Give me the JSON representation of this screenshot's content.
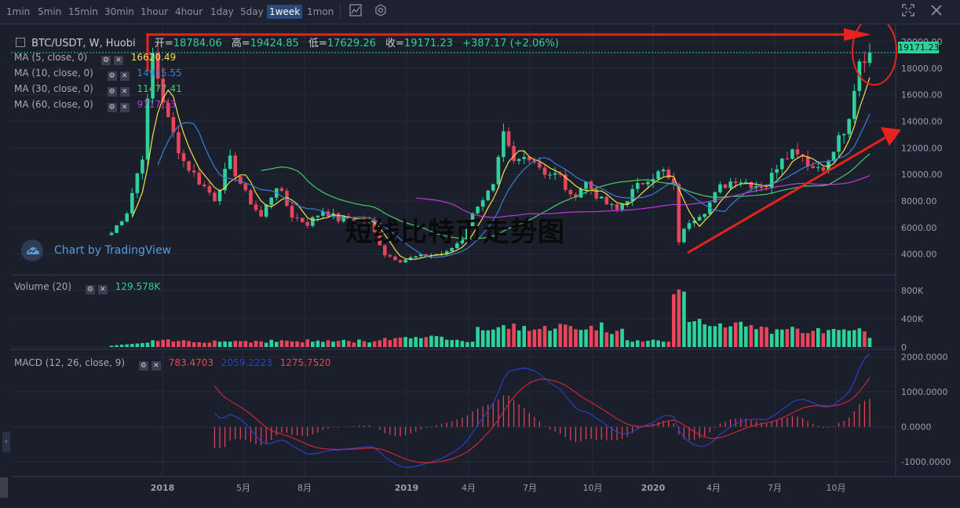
{
  "toolbar": {
    "timeframes": [
      "1min",
      "5min",
      "15min",
      "30min",
      "1hour",
      "4hour",
      "1day",
      "5day",
      "1week",
      "1mon"
    ],
    "active": "1week",
    "icons": [
      "line-chart-icon",
      "settings-icon",
      "fullscreen-icon",
      "close-icon"
    ]
  },
  "legend": {
    "symbol": "BTC/USDT, W, Huobi",
    "open_label": "开=",
    "open": "18784.06",
    "high_label": "高=",
    "high": "19424.85",
    "low_label": "低=",
    "low": "17629.26",
    "close_label": "收=",
    "close": "19171.23",
    "change": "+387.17 (+2.06%)"
  },
  "indicators": {
    "ma5": {
      "label": "MA (5, close, 0)",
      "value": "16620.49",
      "color": "#f2e04a"
    },
    "ma10": {
      "label": "MA (10, close, 0)",
      "value": "14915.55",
      "color": "#3b7dd8"
    },
    "ma30": {
      "label": "MA (30, close, 0)",
      "value": "11477.41",
      "color": "#3ecf6a"
    },
    "ma60": {
      "label": "MA (60, close, 0)",
      "value": "9717.13",
      "color": "#c03ad6"
    },
    "volume": {
      "label": "Volume (20)",
      "value": "129.578K"
    },
    "macd": {
      "label": "MACD (12, 26, close, 9)",
      "hist": "783.4703",
      "macd": "2059.2223",
      "signal": "1275.7520"
    }
  },
  "branding": {
    "tradingview": "Chart by TradingView"
  },
  "watermark": "短线比特币走势图",
  "price_tag": "19171.23",
  "colors": {
    "up": "#2fd19a",
    "down": "#e8455a",
    "bg": "#1b1e2b",
    "grid": "#272b3a",
    "annotation": "#e8231c"
  },
  "chart_data": [
    {
      "type": "candlestick",
      "title": "BTC/USDT, W, Huobi",
      "x_ticks": [
        "2018",
        "5月",
        "8月",
        "2019",
        "4月",
        "7月",
        "10月",
        "2020",
        "4月",
        "7月",
        "10月"
      ],
      "y_ticks": [
        "4000.00",
        "6000.00",
        "8000.00",
        "10000.00",
        "12000.00",
        "14000.00",
        "16000.00",
        "18000.00",
        "20000.00"
      ],
      "ylim": [
        2500,
        21000
      ],
      "close_anchors": [
        [
          0,
          5600
        ],
        [
          3,
          7200
        ],
        [
          6,
          11500
        ],
        [
          8,
          19000
        ],
        [
          11,
          14000
        ],
        [
          14,
          11000
        ],
        [
          17,
          9500
        ],
        [
          20,
          8200
        ],
        [
          23,
          11000
        ],
        [
          26,
          8500
        ],
        [
          29,
          6800
        ],
        [
          32,
          9200
        ],
        [
          35,
          6900
        ],
        [
          38,
          6300
        ],
        [
          41,
          7300
        ],
        [
          44,
          6600
        ],
        [
          47,
          6700
        ],
        [
          50,
          6400
        ],
        [
          53,
          4000
        ],
        [
          56,
          3500
        ],
        [
          59,
          3800
        ],
        [
          62,
          3950
        ],
        [
          65,
          4100
        ],
        [
          68,
          5200
        ],
        [
          71,
          7800
        ],
        [
          74,
          9000
        ],
        [
          76,
          12800
        ],
        [
          78,
          10800
        ],
        [
          81,
          11500
        ],
        [
          84,
          10200
        ],
        [
          87,
          9800
        ],
        [
          89,
          8200
        ],
        [
          92,
          9400
        ],
        [
          95,
          8000
        ],
        [
          98,
          7300
        ],
        [
          101,
          8700
        ],
        [
          104,
          9800
        ],
        [
          107,
          10200
        ],
        [
          109,
          9000
        ],
        [
          110,
          5000
        ],
        [
          112,
          6500
        ],
        [
          115,
          7300
        ],
        [
          118,
          9000
        ],
        [
          121,
          9700
        ],
        [
          124,
          9300
        ],
        [
          127,
          9100
        ],
        [
          130,
          11500
        ],
        [
          133,
          11900
        ],
        [
          136,
          10500
        ],
        [
          139,
          10800
        ],
        [
          141,
          12700
        ],
        [
          143,
          13700
        ],
        [
          145,
          18300
        ],
        [
          147,
          19171
        ]
      ],
      "ma_final": {
        "MA5": 16620.49,
        "MA10": 14915.55,
        "MA30": 11477.41,
        "MA60": 9717.13
      }
    },
    {
      "type": "bar",
      "title": "Volume (20)",
      "y_ticks": [
        "0",
        "400K",
        "800K"
      ],
      "ylim": [
        0,
        900000
      ],
      "final_value": 129578
    },
    {
      "type": "line",
      "title": "MACD (12, 26, close, 9)",
      "y_ticks": [
        "-1000.0000",
        "0.0000",
        "1000.0000",
        "2000.0000"
      ],
      "ylim": [
        -1400,
        2150
      ],
      "final": {
        "histogram": 783.4703,
        "macd": 2059.2223,
        "signal": 1275.752
      }
    }
  ]
}
